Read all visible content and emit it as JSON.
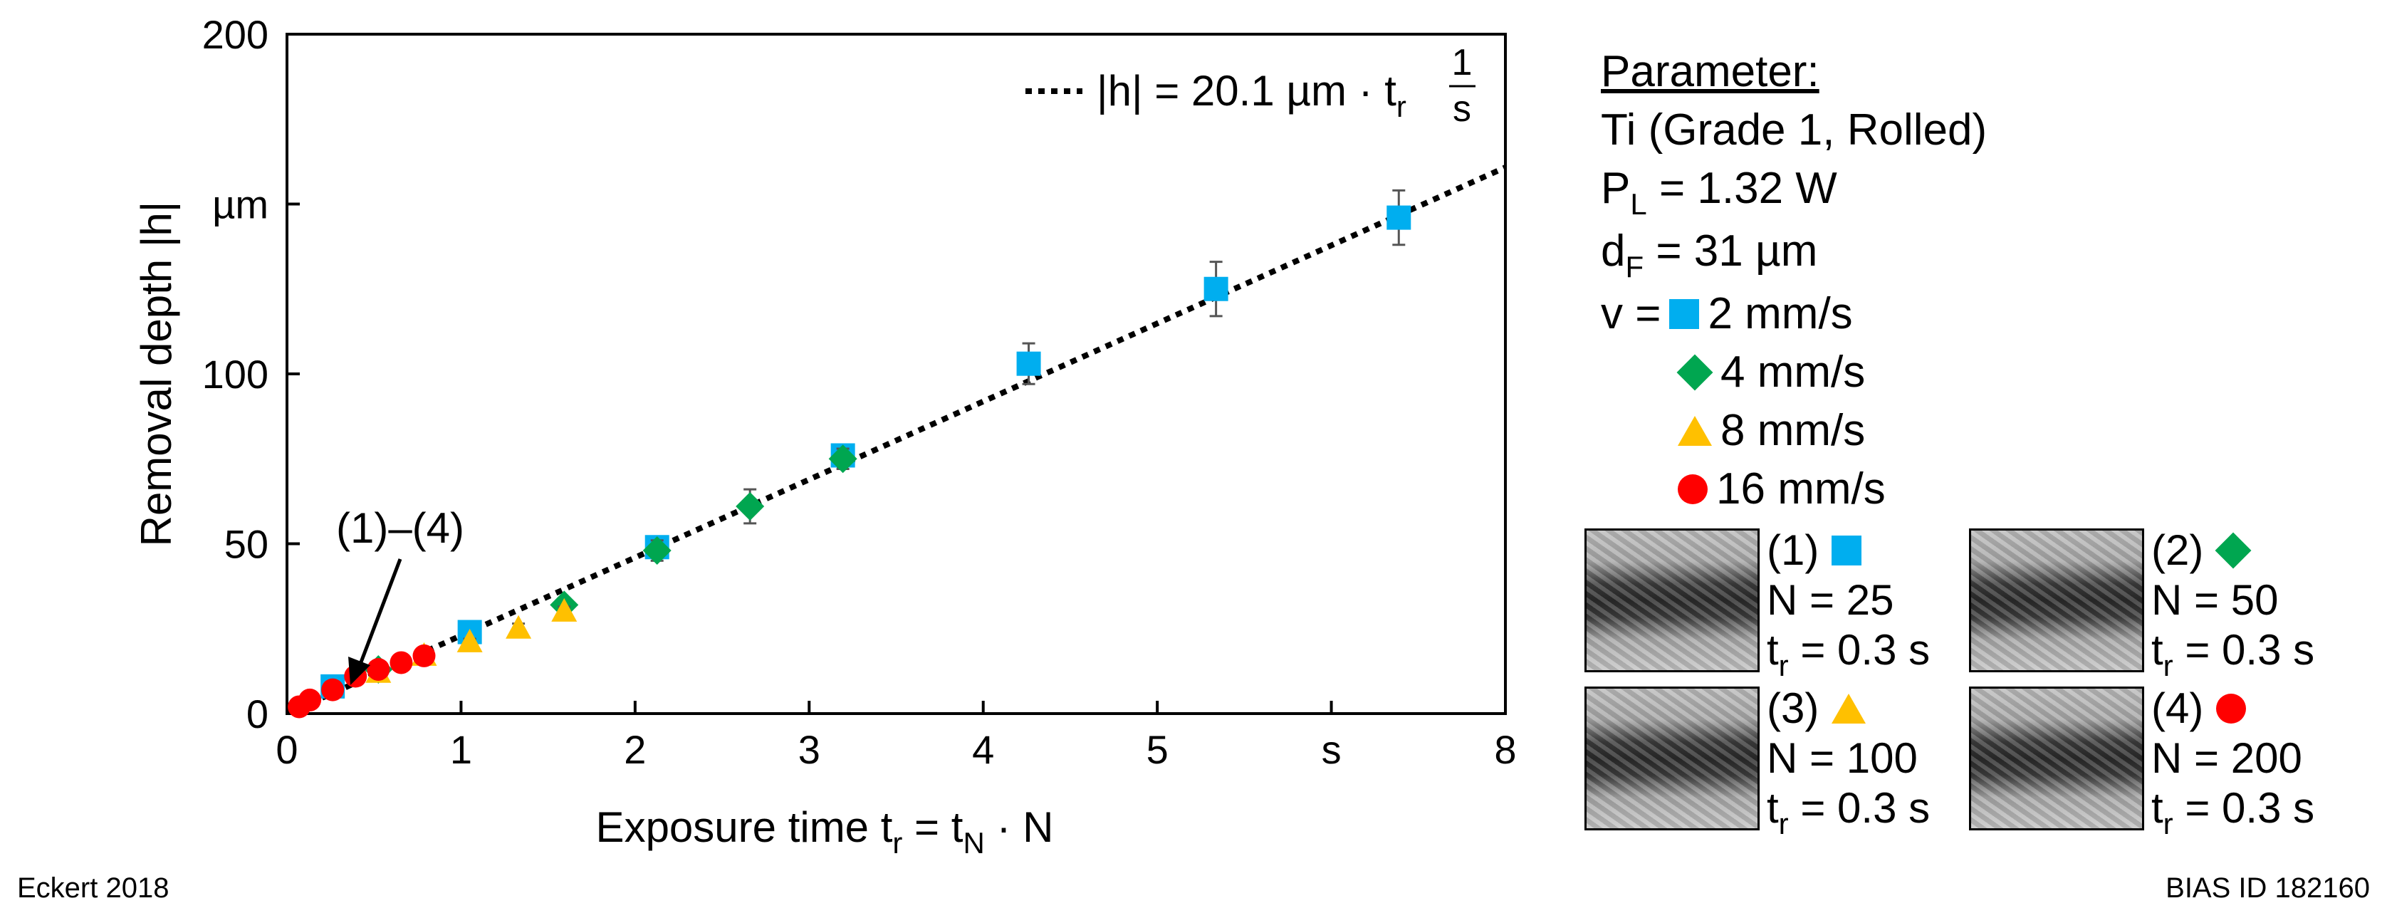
{
  "chart_data": {
    "type": "scatter",
    "xlabel": "Exposure time t_r = t_N · N",
    "ylabel": "Removal depth |h|",
    "x_unit_label": "s",
    "y_unit_label": "µm",
    "xlim": [
      0,
      8
    ],
    "ylim": [
      0,
      200
    ],
    "x_ticks": [
      "0",
      "1",
      "2",
      "3",
      "4",
      "5",
      "s",
      "8"
    ],
    "y_ticks": [
      "0",
      "50",
      "100",
      "µm",
      "200"
    ],
    "fit_line": {
      "label": "|h| = 20.1 µm · t_r 1/s",
      "slope": 20.1,
      "style": "dotted"
    },
    "annotation": "(1)–(4)",
    "series": [
      {
        "name": "2 mm/s",
        "marker": "square",
        "color": "#00aeef",
        "x": [
          0.3,
          1.2,
          2.43,
          3.65,
          4.87,
          6.1,
          7.3
        ],
        "y": [
          8,
          24,
          49,
          76,
          103,
          125,
          146
        ],
        "err": [
          1.5,
          2,
          3,
          3,
          6,
          8,
          8
        ]
      },
      {
        "name": "4 mm/s",
        "marker": "diamond",
        "color": "#00a650",
        "x": [
          0.6,
          1.82,
          2.43,
          3.04,
          3.65
        ],
        "y": [
          13,
          32,
          48,
          61,
          75
        ],
        "err": [
          1,
          2,
          3,
          5,
          3
        ]
      },
      {
        "name": "8 mm/s",
        "marker": "triangle",
        "color": "#ffc000",
        "x": [
          0.6,
          0.9,
          1.2,
          1.52,
          1.82
        ],
        "y": [
          12,
          17,
          21,
          25,
          30
        ],
        "err": [
          1,
          1,
          1,
          1.5,
          1.5
        ]
      },
      {
        "name": "16 mm/s",
        "marker": "circle",
        "color": "#ff0000",
        "x": [
          0.08,
          0.15,
          0.3,
          0.45,
          0.6,
          0.75,
          0.9
        ],
        "y": [
          2,
          4,
          7,
          11,
          13,
          15,
          17
        ],
        "err": [
          0.5,
          0.5,
          1,
          1,
          1,
          1,
          1
        ]
      }
    ]
  },
  "parameters": {
    "heading": "Parameter:",
    "material": "Ti (Grade 1, Rolled)",
    "power": {
      "sym": "P",
      "sub": "L",
      "rest": " = 1.32 W"
    },
    "focus": {
      "sym": "d",
      "sub": "F",
      "rest": " = 31 µm"
    },
    "v_prefix": "v =",
    "speeds": [
      "2 mm/s",
      "4 mm/s",
      "8 mm/s",
      "16 mm/s"
    ]
  },
  "samples": [
    {
      "id": "(1)",
      "n": "N = 25",
      "tsym": "t",
      "tsub": "r",
      "trest": " = 0.3 s"
    },
    {
      "id": "(2)",
      "n": "N = 50",
      "tsym": "t",
      "tsub": "r",
      "trest": " = 0.3 s"
    },
    {
      "id": "(3)",
      "n": "N = 100",
      "tsym": "t",
      "tsub": "r",
      "trest": " = 0.3 s"
    },
    {
      "id": "(4)",
      "n": "N = 200",
      "tsym": "t",
      "tsub": "r",
      "trest": " = 0.3 s"
    }
  ],
  "footer": {
    "left": "Eckert 2018",
    "right": "BIAS ID 182160"
  }
}
